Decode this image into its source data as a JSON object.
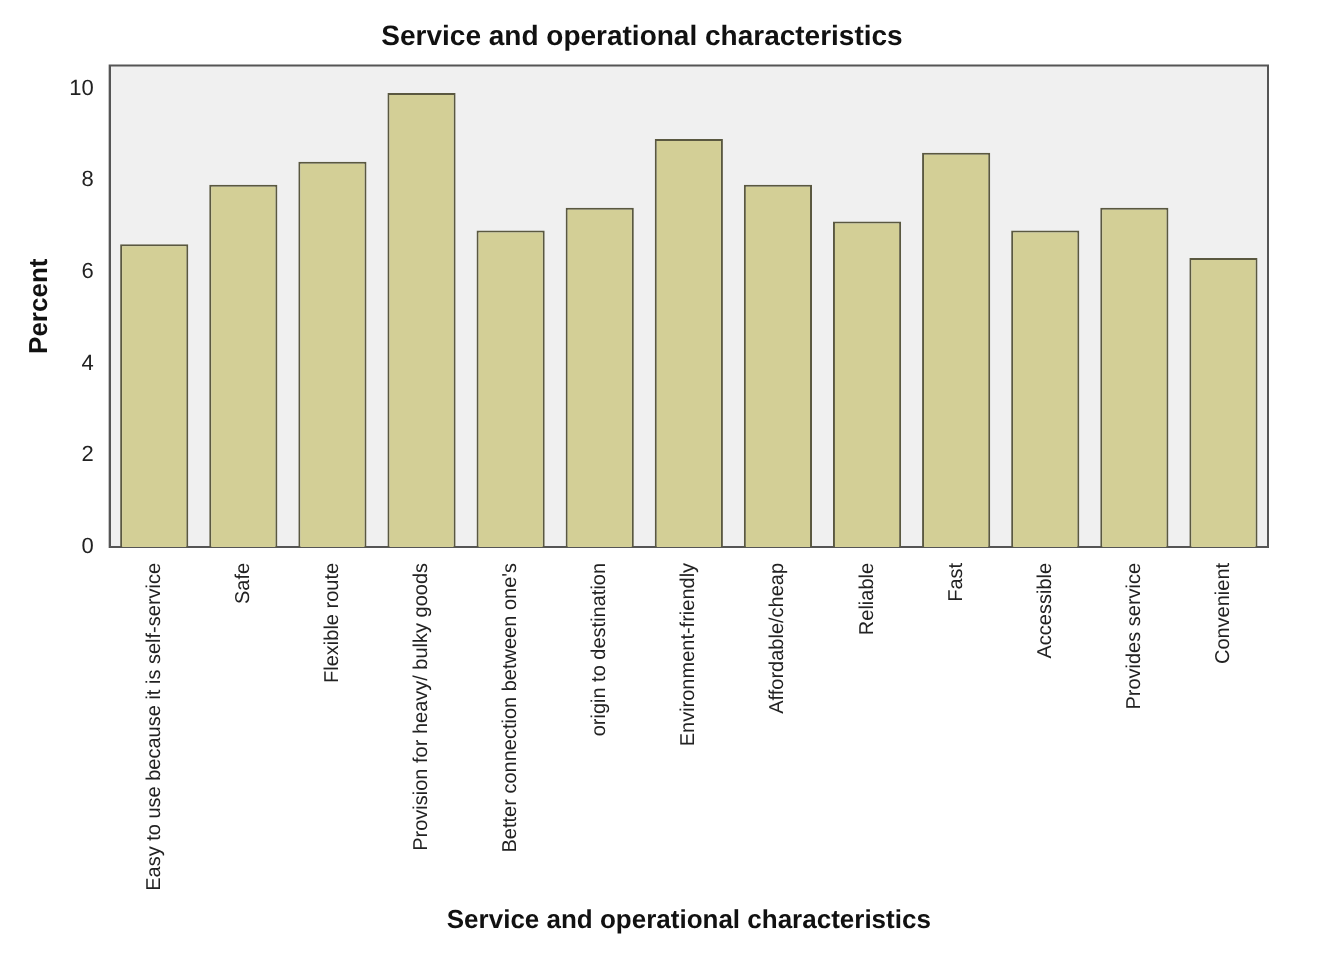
{
  "chart_data": {
    "type": "bar",
    "title": "Service and operational characteristics",
    "xlabel": "Service and operational characteristics",
    "ylabel": "Percent",
    "categories": [
      "Easy to use because it is self-service",
      "Safe",
      "Flexible route",
      "Provision for heavy/ bulky goods",
      "Better connection between one's",
      "origin to destination",
      "Environment-friendly",
      "Affordable/cheap",
      "Reliable",
      "Fast",
      "Accessible",
      "Provides service",
      "Convenient"
    ],
    "values": [
      6.6,
      7.9,
      8.4,
      9.9,
      6.9,
      7.4,
      8.9,
      7.9,
      7.1,
      8.6,
      6.9,
      7.4,
      6.3
    ],
    "color": "#d3cf96",
    "ylim": [
      0,
      10.5
    ],
    "yticks": [
      0,
      2,
      4,
      6,
      8,
      10
    ],
    "grid": false,
    "legend": false
  }
}
